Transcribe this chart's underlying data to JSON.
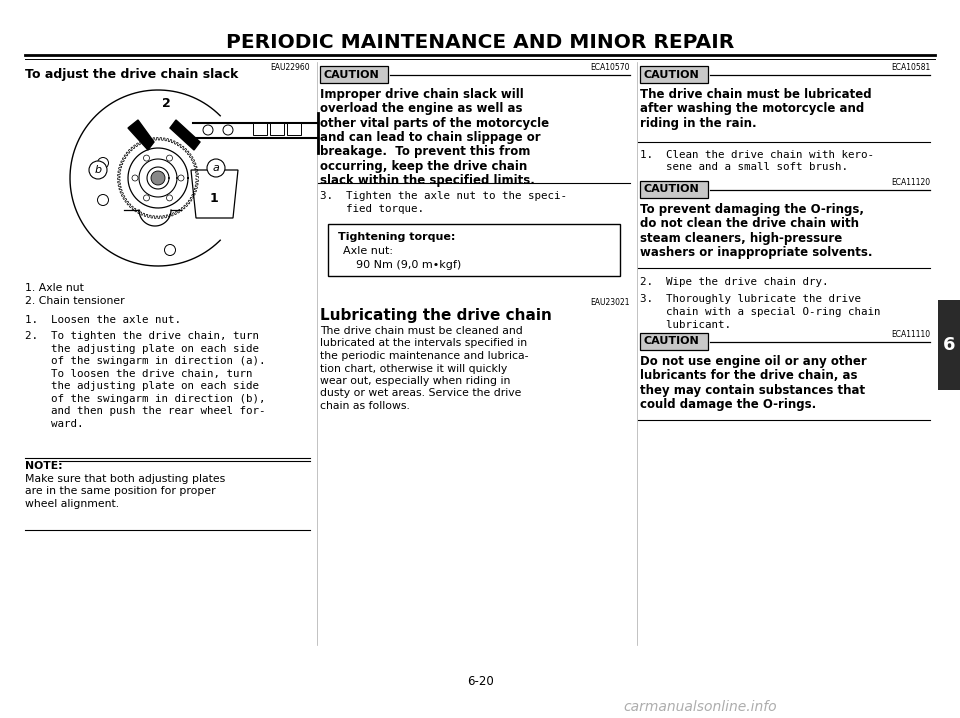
{
  "title": "PERIODIC MAINTENANCE AND MINOR REPAIR",
  "page_number": "6-20",
  "tab_number": "6",
  "background_color": "#ffffff",
  "col1": {
    "ref": "EAU22960",
    "section_title": "To adjust the drive chain slack",
    "parts": [
      "1. Axle nut",
      "2. Chain tensioner"
    ],
    "step1": "1.  Loosen the axle nut.",
    "step2_lines": [
      "2.  To tighten the drive chain, turn",
      "    the adjusting plate on each side",
      "    of the swingarm in direction (a).",
      "    To loosen the drive chain, turn",
      "    the adjusting plate on each side",
      "    of the swingarm in direction (b),",
      "    and then push the rear wheel for-",
      "    ward."
    ],
    "note_label": "NOTE:",
    "note_lines": [
      "Make sure that both adjusting plates",
      "are in the same position for proper",
      "wheel alignment."
    ]
  },
  "col2": {
    "ref1": "ECA10570",
    "caution1_title": "CAUTION",
    "caution1_lines": [
      "Improper drive chain slack will",
      "overload the engine as well as",
      "other vital parts of the motorcycle",
      "and can lead to chain slippage or",
      "breakage.  To prevent this from",
      "occurring, keep the drive chain",
      "slack within the specified limits."
    ],
    "step3_lines": [
      "3.  Tighten the axle nut to the speci-",
      "    fied torque."
    ],
    "torque_title": "Tightening torque:",
    "torque_line1": "Axle nut:",
    "torque_line2": "90 Nm (9,0 m•kgf)",
    "ref2": "EAU23021",
    "section2_title": "Lubricating the drive chain",
    "section2_lines": [
      "The drive chain must be cleaned and",
      "lubricated at the intervals specified in",
      "the periodic maintenance and lubrica-",
      "tion chart, otherwise it will quickly",
      "wear out, especially when riding in",
      "dusty or wet areas. Service the drive",
      "chain as follows."
    ]
  },
  "col3": {
    "ref1": "ECA10581",
    "caution1_title": "CAUTION",
    "caution1_lines": [
      "The drive chain must be lubricated",
      "after washing the motorcycle and",
      "riding in the rain."
    ],
    "step1_lines": [
      "1.  Clean the drive chain with kero-",
      "    sene and a small soft brush."
    ],
    "ref_step1": "ECA11120",
    "caution2_title": "CAUTION",
    "caution2_lines": [
      "To prevent damaging the O-rings,",
      "do not clean the drive chain with",
      "steam cleaners, high-pressure",
      "washers or inappropriate solvents."
    ],
    "step2": "2.  Wipe the drive chain dry.",
    "step3_lines": [
      "3.  Thoroughly lubricate the drive",
      "    chain with a special O-ring chain",
      "    lubricant."
    ],
    "ref_step23": "ECA11110",
    "caution3_title": "CAUTION",
    "caution3_lines": [
      "Do not use engine oil or any other",
      "lubricants for the drive chain, as",
      "they may contain substances that",
      "could damage the O-rings."
    ]
  },
  "caution_bg": "#c8c8c8",
  "tab_bg": "#2a2a2a",
  "watermark": "carmanualsonline.info"
}
